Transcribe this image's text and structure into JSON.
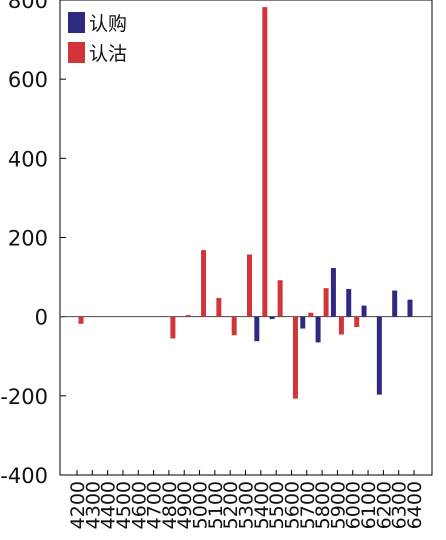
{
  "chart_data": {
    "type": "bar",
    "categories": [
      "4200",
      "4300",
      "4400",
      "4500",
      "4600",
      "4700",
      "4800",
      "4900",
      "5000",
      "5100",
      "5200",
      "5300",
      "5400",
      "5500",
      "5600",
      "5700",
      "5800",
      "5900",
      "6000",
      "6100",
      "6200",
      "6300",
      "6400"
    ],
    "series": [
      {
        "name": "认购",
        "color": "#2e2a80",
        "values": [
          0,
          0,
          0,
          0,
          0,
          0,
          0,
          0,
          0,
          0,
          0,
          0,
          -62,
          -6,
          0,
          -30,
          -65,
          123,
          70,
          28,
          -197,
          66,
          43
        ]
      },
      {
        "name": "认沽",
        "color": "#d13439",
        "values": [
          -18,
          0,
          0,
          0,
          0,
          0,
          -55,
          4,
          168,
          47,
          -47,
          157,
          782,
          92,
          -207,
          10,
          72,
          -45,
          -26,
          0,
          0,
          0,
          0
        ]
      }
    ],
    "ylim": [
      -400,
      800
    ],
    "yticks": [
      -400,
      -200,
      0,
      200,
      400,
      600,
      800
    ],
    "legend_position": "top-left",
    "grid": false
  }
}
